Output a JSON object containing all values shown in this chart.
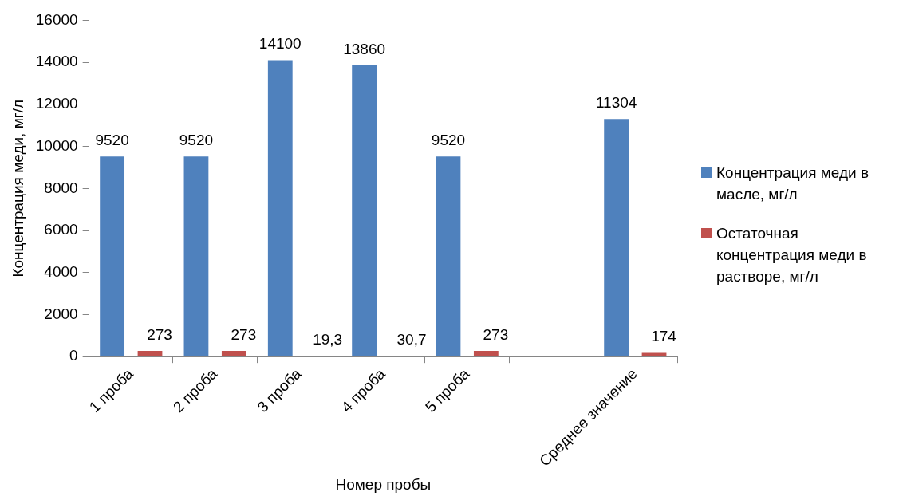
{
  "chart_data": {
    "type": "bar",
    "xlabel": "Номер пробы",
    "ylabel": "Концентрация меди, мг/л",
    "categories": [
      "1 проба",
      "2 проба",
      "3 проба",
      "4 проба",
      "5 проба",
      null,
      "Среднее значение"
    ],
    "series": [
      {
        "name": "Концентрация меди в масле, мг/л",
        "color": "#4f81bd",
        "values": [
          9520,
          9520,
          14100,
          13860,
          9520,
          null,
          11304
        ],
        "value_labels": [
          "9520",
          "9520",
          "14100",
          "13860",
          "9520",
          null,
          "11304"
        ]
      },
      {
        "name": "Остаточная концентрация меди в растворе, мг/л",
        "color": "#c0504d",
        "values": [
          273,
          273,
          19.3,
          30.7,
          273,
          null,
          174
        ],
        "value_labels": [
          "273",
          "273",
          "19,3",
          "30,7",
          "273",
          null,
          "174"
        ]
      }
    ],
    "ylim": [
      0,
      16000
    ],
    "yticks": [
      0,
      2000,
      4000,
      6000,
      8000,
      10000,
      12000,
      14000,
      16000
    ],
    "grid": false,
    "legend": "right"
  }
}
